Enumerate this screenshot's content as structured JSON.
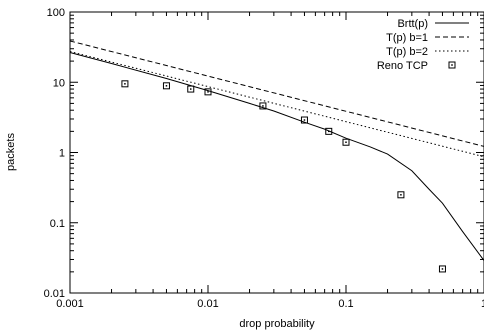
{
  "chart_data": {
    "type": "line",
    "title": "",
    "xlabel": "drop probability",
    "ylabel": "packets",
    "xscale": "log",
    "yscale": "log",
    "xlim": [
      0.001,
      1
    ],
    "ylim": [
      0.01,
      100
    ],
    "grid": false,
    "legend_position": "top-right",
    "x_ticks": [
      {
        "value": 0.001,
        "label": "0.001"
      },
      {
        "value": 0.01,
        "label": "0.01"
      },
      {
        "value": 0.1,
        "label": "0.1"
      },
      {
        "value": 1,
        "label": "1"
      }
    ],
    "y_ticks": [
      {
        "value": 0.01,
        "label": "0.01"
      },
      {
        "value": 0.1,
        "label": "0.1"
      },
      {
        "value": 1,
        "label": "1"
      },
      {
        "value": 10,
        "label": "10"
      },
      {
        "value": 100,
        "label": "100"
      }
    ],
    "series": [
      {
        "name": "Brtt(p)",
        "style": "solid",
        "points": [
          [
            0.001,
            26.5
          ],
          [
            0.002,
            18.5
          ],
          [
            0.005,
            11.3
          ],
          [
            0.01,
            7.6
          ],
          [
            0.02,
            5.0
          ],
          [
            0.03,
            3.9
          ],
          [
            0.05,
            2.7
          ],
          [
            0.07,
            2.15
          ],
          [
            0.1,
            1.6
          ],
          [
            0.15,
            1.2
          ],
          [
            0.2,
            0.95
          ],
          [
            0.3,
            0.55
          ],
          [
            0.4,
            0.3
          ],
          [
            0.5,
            0.19
          ],
          [
            0.7,
            0.075
          ],
          [
            1,
            0.029
          ]
        ]
      },
      {
        "name": "T(p) b=1",
        "style": "dashed",
        "points": [
          [
            0.001,
            38.7
          ],
          [
            1,
            1.22
          ]
        ]
      },
      {
        "name": "T(p) b=2",
        "style": "dotted",
        "points": [
          [
            0.001,
            27.4
          ],
          [
            1,
            0.87
          ]
        ]
      },
      {
        "name": "Reno TCP",
        "style": "markers",
        "points": [
          [
            0.0025,
            9.5
          ],
          [
            0.005,
            8.9
          ],
          [
            0.0075,
            8.0
          ],
          [
            0.01,
            7.3
          ],
          [
            0.025,
            4.6
          ],
          [
            0.05,
            2.9
          ],
          [
            0.075,
            2.0
          ],
          [
            0.1,
            1.4
          ],
          [
            0.25,
            0.25
          ],
          [
            0.5,
            0.022
          ]
        ]
      }
    ]
  }
}
